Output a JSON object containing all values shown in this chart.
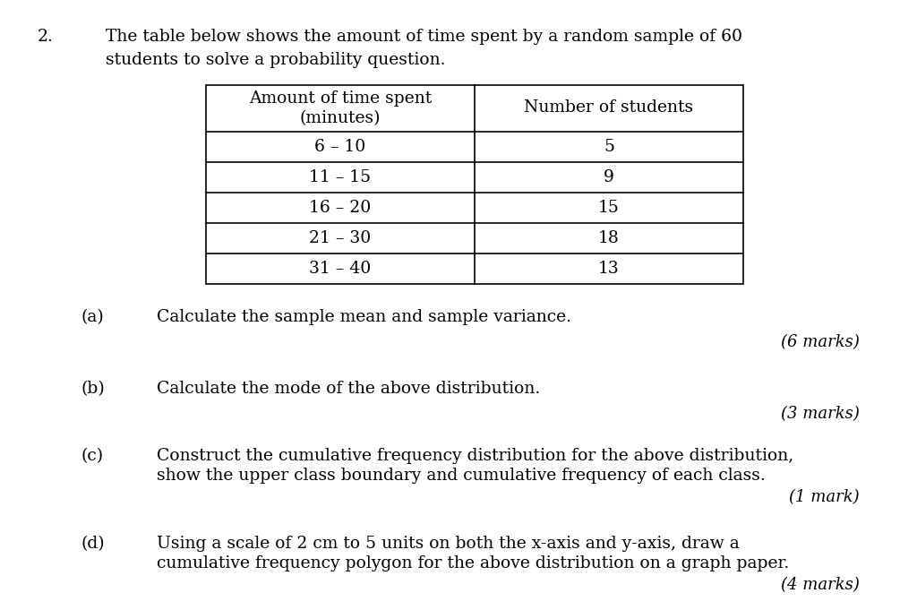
{
  "background_color": "#ffffff",
  "question_number": "2.",
  "question_text_line1": "The table below shows the amount of time spent by a random sample of 60",
  "question_text_line2": "students to solve a probability question.",
  "table": {
    "col1_header_line1": "Amount of time spent",
    "col1_header_line2": "(minutes)",
    "col2_header": "Number of students",
    "rows": [
      [
        "6 – 10",
        "5"
      ],
      [
        "11 – 15",
        "9"
      ],
      [
        "16 – 20",
        "15"
      ],
      [
        "21 – 30",
        "18"
      ],
      [
        "31 – 40",
        "13"
      ]
    ]
  },
  "parts": [
    {
      "label": "(a)",
      "text": "Calculate the sample mean and sample variance.",
      "marks": "(6 marks)",
      "two_lines": false
    },
    {
      "label": "(b)",
      "text": "Calculate the mode of the above distribution.",
      "marks": "(3 marks)",
      "two_lines": false
    },
    {
      "label": "(c)",
      "text_line1": "Construct the cumulative frequency distribution for the above distribution,",
      "text_line2": "show the upper class boundary and cumulative frequency of each class.",
      "marks": "(1 mark)",
      "two_lines": true
    },
    {
      "label": "(d)",
      "text_line1": "Using a scale of 2 cm to 5 units on both the x-axis and y-axis, draw a",
      "text_line2": "cumulative frequency polygon for the above distribution on a graph paper.",
      "marks": "(4 marks)",
      "two_lines": true
    }
  ],
  "font_size_main": 13.5,
  "font_size_table": 13.5,
  "font_size_marks": 13,
  "font_family": "DejaVu Serif"
}
